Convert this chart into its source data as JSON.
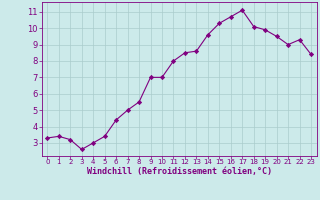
{
  "x": [
    0,
    1,
    2,
    3,
    4,
    5,
    6,
    7,
    8,
    9,
    10,
    11,
    12,
    13,
    14,
    15,
    16,
    17,
    18,
    19,
    20,
    21,
    22,
    23
  ],
  "y": [
    3.3,
    3.4,
    3.2,
    2.6,
    3.0,
    3.4,
    4.4,
    5.0,
    5.5,
    7.0,
    7.0,
    8.0,
    8.5,
    8.6,
    9.6,
    10.3,
    10.7,
    11.1,
    10.1,
    9.9,
    9.5,
    9.0,
    9.3,
    8.4
  ],
  "line_color": "#800080",
  "marker": "D",
  "marker_size": 2.2,
  "bg_color": "#cceaea",
  "grid_color": "#aacccc",
  "xlabel": "Windchill (Refroidissement éolien,°C)",
  "xlabel_color": "#800080",
  "tick_color": "#800080",
  "spine_color": "#800080",
  "xlim": [
    -0.5,
    23.5
  ],
  "ylim": [
    2.2,
    11.6
  ],
  "yticks": [
    3,
    4,
    5,
    6,
    7,
    8,
    9,
    10,
    11
  ],
  "xticks": [
    0,
    1,
    2,
    3,
    4,
    5,
    6,
    7,
    8,
    9,
    10,
    11,
    12,
    13,
    14,
    15,
    16,
    17,
    18,
    19,
    20,
    21,
    22,
    23
  ],
  "xlabel_fontsize": 6.0,
  "tick_fontsize_x": 5.0,
  "tick_fontsize_y": 6.0
}
